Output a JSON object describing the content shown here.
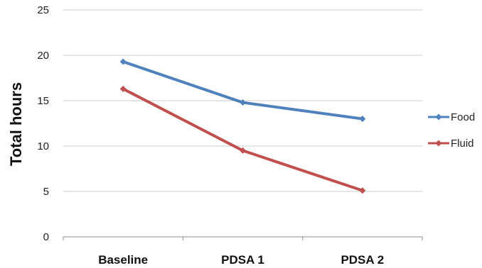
{
  "chart_data": {
    "type": "line",
    "categories": [
      "Baseline",
      "PDSA 1",
      "PDSA 2"
    ],
    "series": [
      {
        "name": "Food",
        "values": [
          19.3,
          14.8,
          13.0
        ],
        "color": "#4f81bd"
      },
      {
        "name": "Fluid",
        "values": [
          16.3,
          9.5,
          5.1
        ],
        "color": "#c0504d"
      }
    ],
    "title": "",
    "xlabel": "",
    "ylabel": "Total hours",
    "ylim": [
      0,
      25
    ],
    "yticks": [
      "0",
      "5",
      "10",
      "15",
      "20",
      "25"
    ],
    "grid": true,
    "legend_position": "right",
    "marker": "diamond"
  }
}
